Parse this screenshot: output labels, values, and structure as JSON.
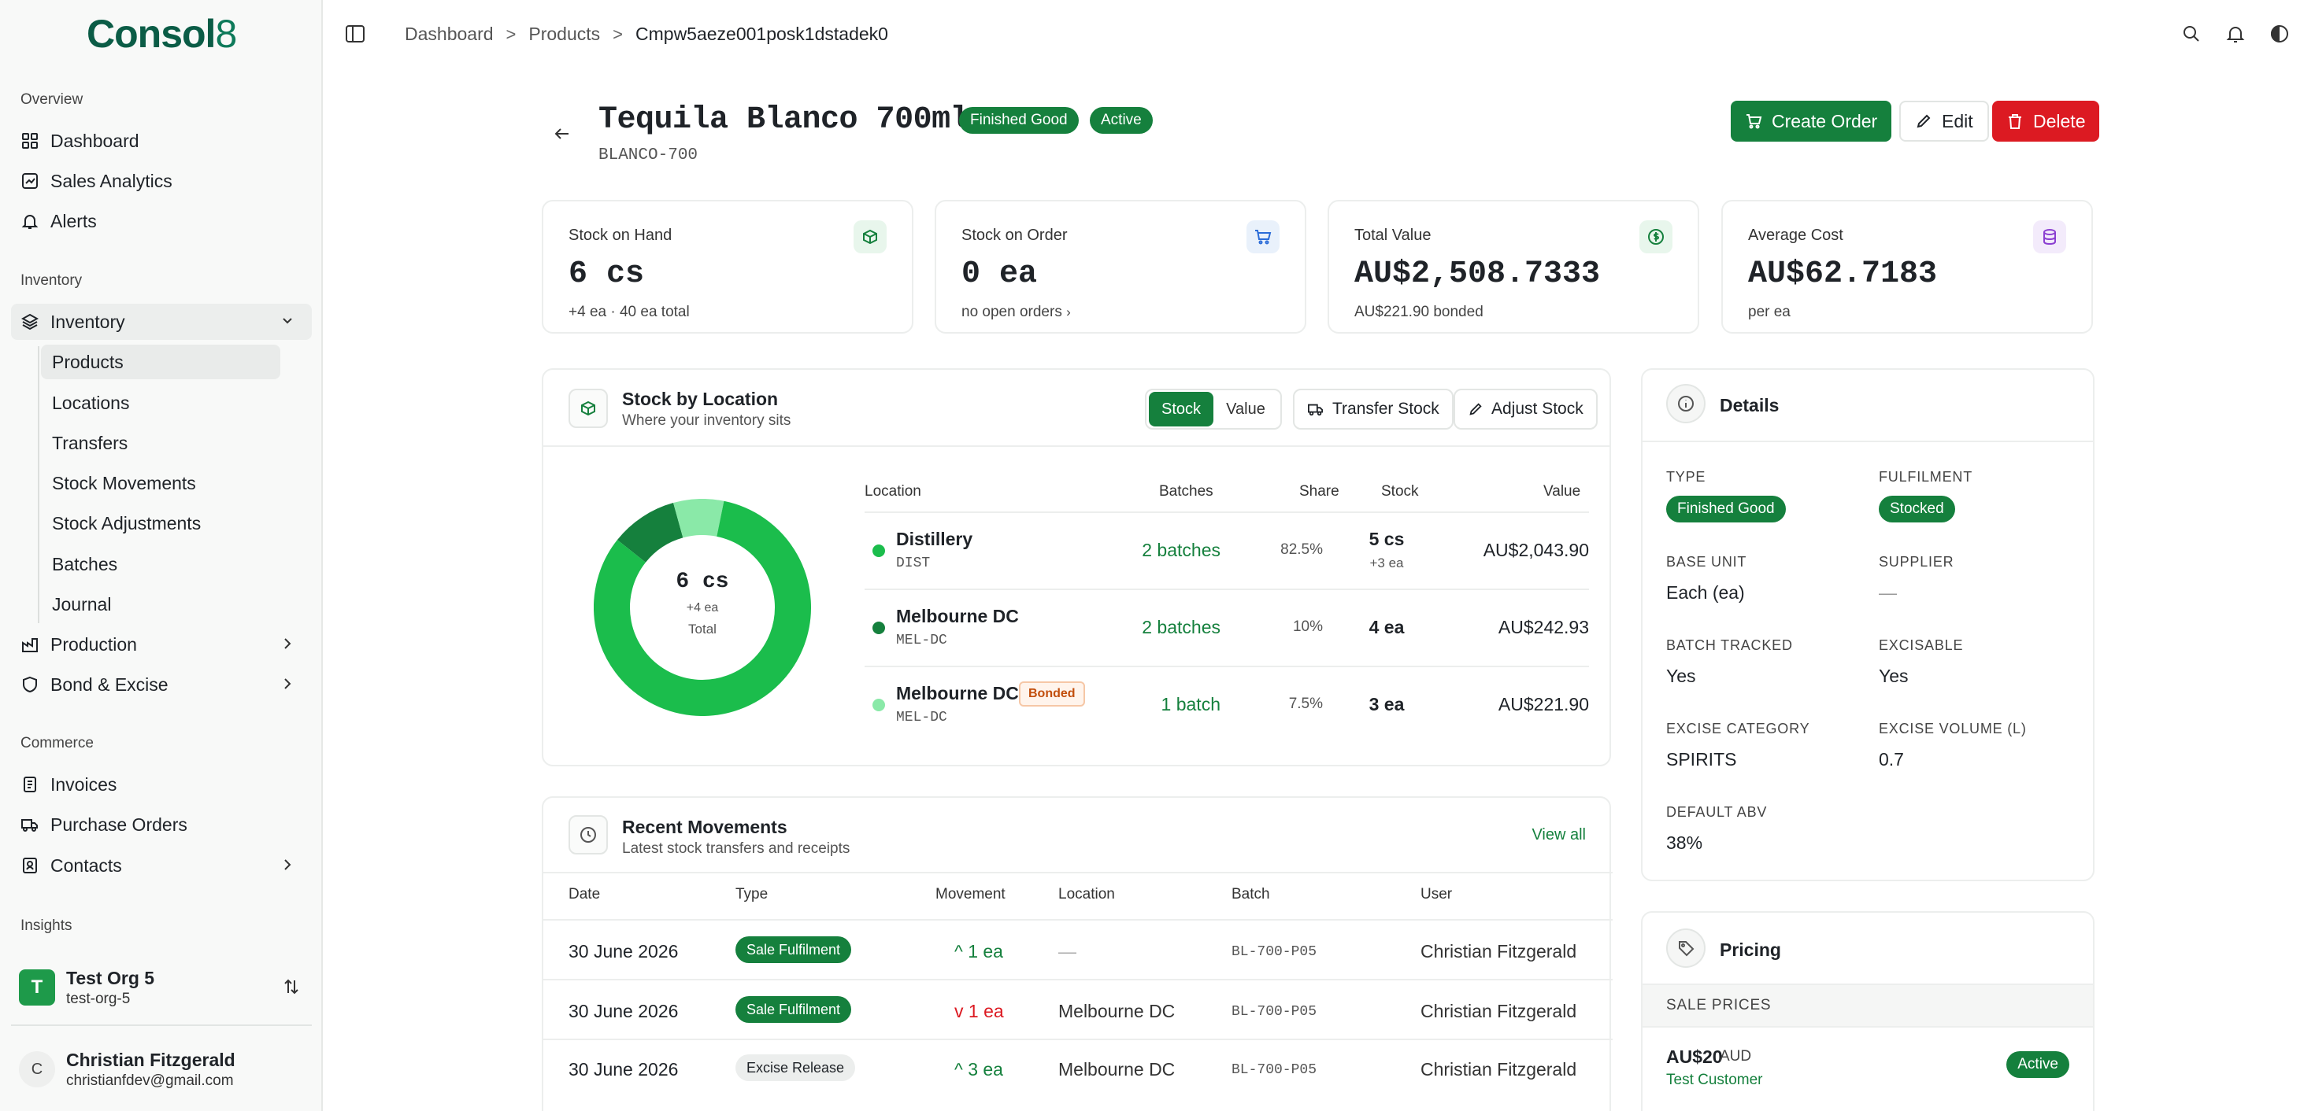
{
  "brand": {
    "name": "Consol",
    "suffix": "8"
  },
  "sidebar": {
    "overview_label": "Overview",
    "overview": [
      {
        "label": "Dashboard",
        "icon": "grid-icon"
      },
      {
        "label": "Sales Analytics",
        "icon": "analytics-icon"
      },
      {
        "label": "Alerts",
        "icon": "bell-icon"
      }
    ],
    "inventory_label": "Inventory",
    "inventory_group": {
      "label": "Inventory",
      "icon": "layers-icon"
    },
    "inventory_items": [
      "Products",
      "Locations",
      "Transfers",
      "Stock Movements",
      "Stock Adjustments",
      "Batches",
      "Journal"
    ],
    "production": {
      "label": "Production",
      "icon": "factory-icon"
    },
    "bond": {
      "label": "Bond & Excise",
      "icon": "shield-icon"
    },
    "commerce_label": "Commerce",
    "commerce": [
      {
        "label": "Invoices",
        "icon": "invoice-icon"
      },
      {
        "label": "Purchase Orders",
        "icon": "truck-icon"
      },
      {
        "label": "Contacts",
        "icon": "contacts-icon"
      }
    ],
    "insights_label": "Insights",
    "org": {
      "initial": "T",
      "name": "Test Org 5",
      "slug": "test-org-5"
    },
    "user": {
      "initial": "C",
      "name": "Christian Fitzgerald",
      "email": "christianfdev@gmail.com"
    }
  },
  "breadcrumb": {
    "items": [
      "Dashboard",
      "Products",
      "Cmpw5aeze001posk1dstadek0"
    ],
    "sep": ">"
  },
  "header": {
    "title": "Tequila Blanco 700ml",
    "badges": [
      "Finished Good",
      "Active"
    ],
    "sku": "BLANCO-700",
    "create_order": "Create Order",
    "edit": "Edit",
    "delete": "Delete"
  },
  "stats": [
    {
      "label": "Stock on Hand",
      "value": "6 cs",
      "sub": "+4 ea · 40 ea total",
      "icon": "box-icon"
    },
    {
      "label": "Stock on Order",
      "value": "0 ea",
      "sub": "no open orders",
      "icon": "cart-icon"
    },
    {
      "label": "Total Value",
      "value": "AU$2,508.7333",
      "sub": "AU$221.90 bonded",
      "icon": "money-icon"
    },
    {
      "label": "Average Cost",
      "value": "AU$62.7183",
      "sub": "per ea",
      "icon": "database-icon"
    }
  ],
  "stock_by_location": {
    "title": "Stock by Location",
    "subtitle": "Where your inventory sits",
    "toggle": [
      "Stock",
      "Value"
    ],
    "transfer": "Transfer Stock",
    "adjust": "Adjust Stock",
    "donut": {
      "value": "6 cs",
      "sub": "+4 ea",
      "label": "Total"
    },
    "columns": [
      "Location",
      "Batches",
      "Share",
      "Stock",
      "Value"
    ],
    "rows": [
      {
        "name": "Distillery",
        "code": "DIST",
        "batches": "2 batches",
        "share": "82.5%",
        "stock": "5 cs",
        "stock_sub": "+3 ea",
        "value": "AU$2,043.90",
        "color": "#1bbd4c",
        "share_num": 82.5
      },
      {
        "name": "Melbourne DC",
        "code": "MEL-DC",
        "batches": "2 batches",
        "share": "10%",
        "stock": "4 ea",
        "stock_sub": "",
        "value": "AU$242.93",
        "color": "#15803d",
        "share_num": 10
      },
      {
        "name": "Melbourne DC",
        "code": "MEL-DC",
        "bonded": "Bonded",
        "batches": "1 batch",
        "share": "7.5%",
        "stock": "3 ea",
        "stock_sub": "",
        "value": "AU$221.90",
        "color": "#8ae9a8",
        "share_num": 7.5
      }
    ]
  },
  "details": {
    "title": "Details",
    "type_label": "TYPE",
    "type_value": "Finished Good",
    "fulfilment_label": "FULFILMENT",
    "fulfilment_value": "Stocked",
    "base_unit_label": "BASE UNIT",
    "base_unit_value": "Each (ea)",
    "supplier_label": "SUPPLIER",
    "supplier_value": "—",
    "batch_tracked_label": "BATCH TRACKED",
    "batch_tracked_value": "Yes",
    "excisable_label": "EXCISABLE",
    "excisable_value": "Yes",
    "excise_category_label": "EXCISE CATEGORY",
    "excise_category_value": "SPIRITS",
    "excise_volume_label": "EXCISE VOLUME (L)",
    "excise_volume_value": "0.7",
    "default_abv_label": "DEFAULT ABV",
    "default_abv_value": "38%"
  },
  "movements": {
    "title": "Recent Movements",
    "subtitle": "Latest stock transfers and receipts",
    "view_all": "View all",
    "columns": [
      "Date",
      "Type",
      "Movement",
      "Location",
      "Batch",
      "User"
    ],
    "rows": [
      {
        "date": "30 June 2026",
        "type": "Sale Fulfilment",
        "dir": "^",
        "qty": "1 ea",
        "location": "—",
        "batch": "BL-700-P05",
        "user": "Christian Fitzgerald"
      },
      {
        "date": "30 June 2026",
        "type": "Sale Fulfilment",
        "dir": "v",
        "qty": "1 ea",
        "location": "Melbourne DC",
        "batch": "BL-700-P05",
        "user": "Christian Fitzgerald"
      },
      {
        "date": "30 June 2026",
        "type": "Excise Release",
        "dir": "^",
        "qty": "3 ea",
        "location": "Melbourne DC",
        "batch": "BL-700-P05",
        "user": "Christian Fitzgerald"
      }
    ]
  },
  "pricing": {
    "title": "Pricing",
    "section": "SALE PRICES",
    "amount": "AU$20",
    "currency": "AUD",
    "customer": "Test Customer",
    "status": "Active"
  },
  "colors": {
    "accent": "#15803d",
    "danger": "#dc1a22",
    "donut_main": "#1bbd4c",
    "donut_dark": "#15803d",
    "donut_light": "#8ae9a8"
  }
}
